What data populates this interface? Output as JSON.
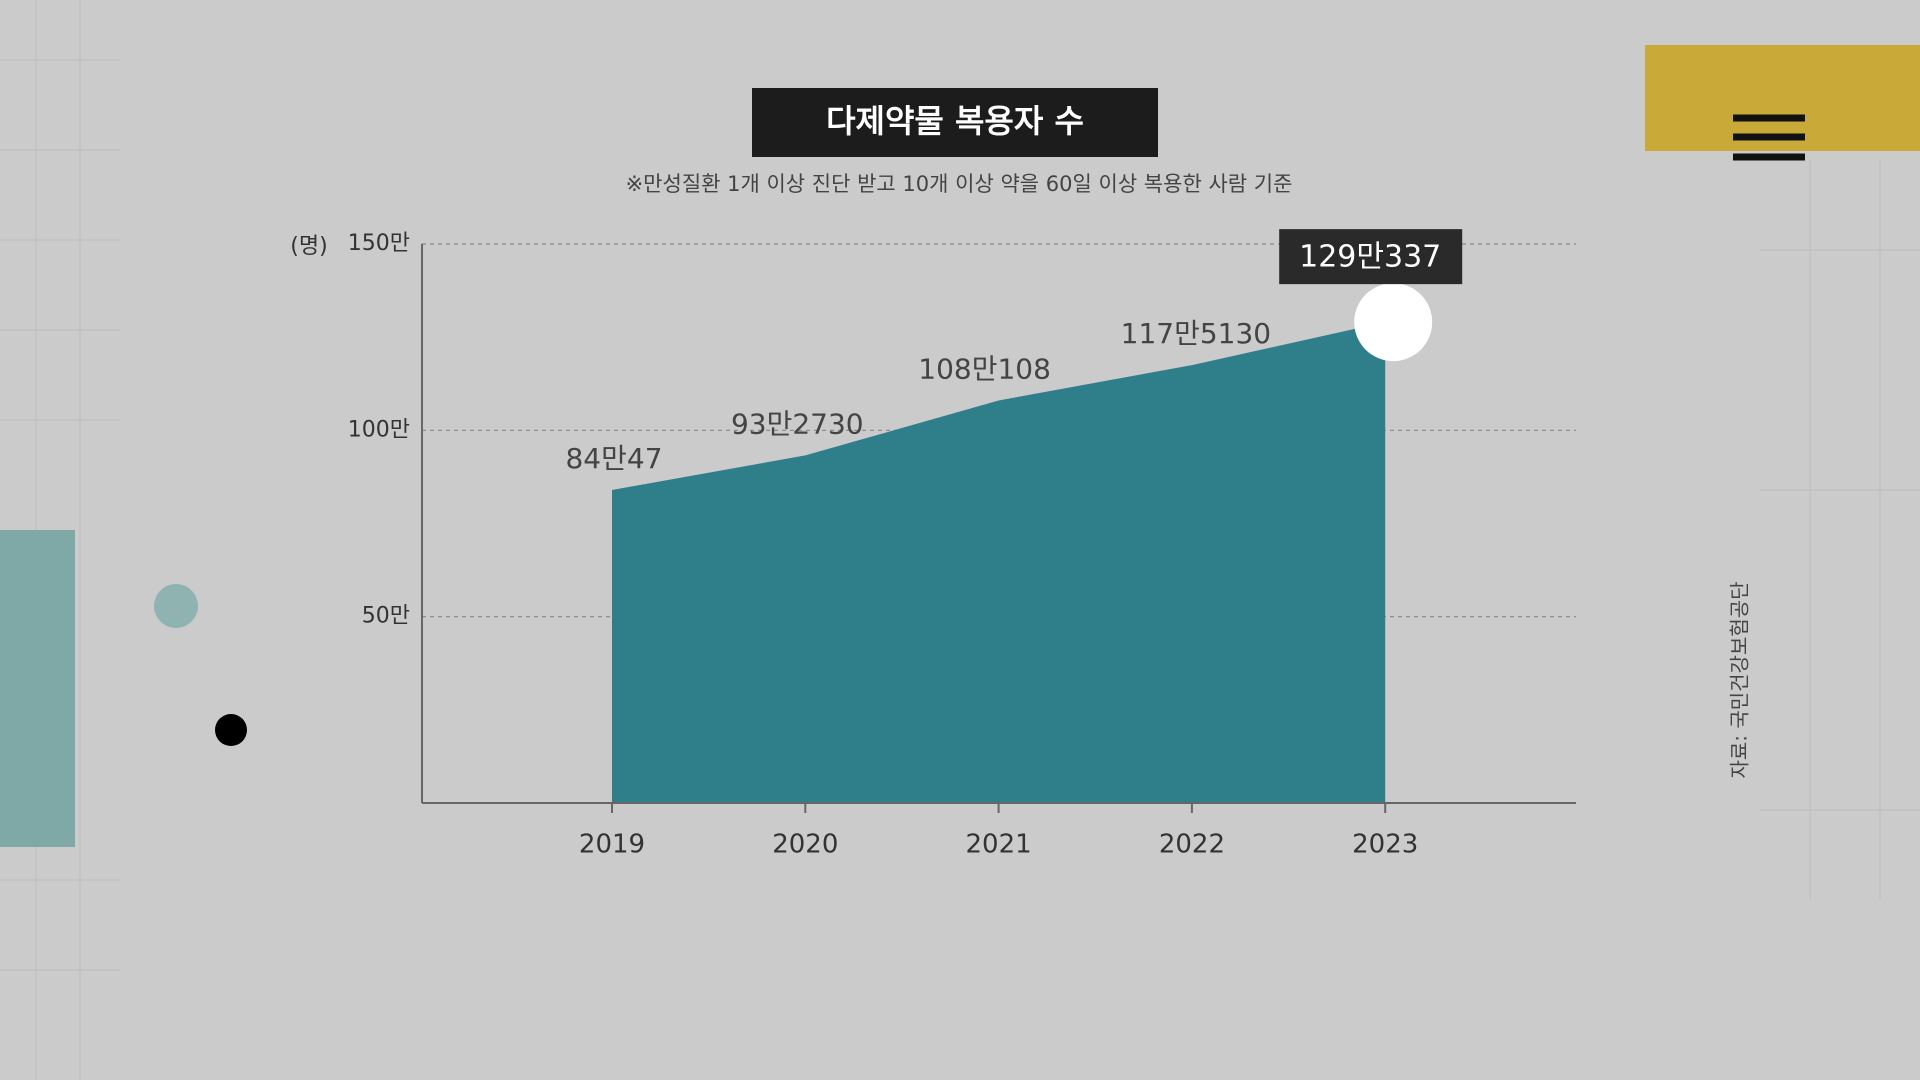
{
  "chart_data": {
    "type": "area",
    "title": "다제약물 복용자 수",
    "subtitle": "※만성질환 1개 이상 진단 받고 10개 이상 약을 60일 이상 복용한 사람 기준",
    "y_label": "(명)",
    "source": "자료: 국민건강보험공단",
    "categories": [
      "2019",
      "2020",
      "2021",
      "2022",
      "2023"
    ],
    "values": [
      840047,
      932730,
      1080108,
      1175130,
      1290337
    ],
    "value_labels": [
      "84만47",
      "93만2730",
      "108만108",
      "117만5130",
      "129만337"
    ],
    "color": "#2f7f8b",
    "ylim": [
      0,
      1500000
    ],
    "yticks": [
      {
        "value": 500000,
        "label": "50만"
      },
      {
        "value": 1000000,
        "label": "100만"
      },
      {
        "value": 1500000,
        "label": "150만"
      }
    ],
    "grid": true
  }
}
